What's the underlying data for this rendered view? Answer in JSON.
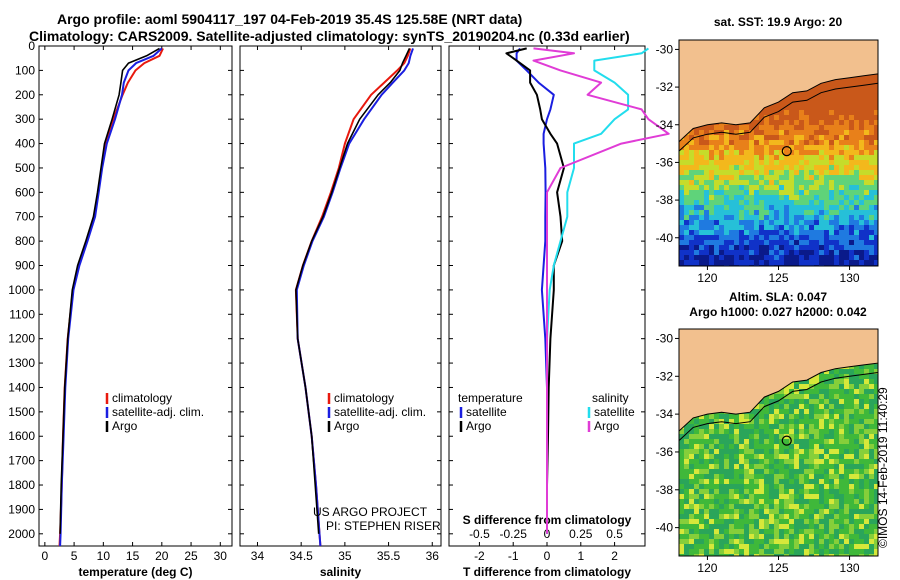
{
  "header": {
    "title_line1": "Argo profile: aoml 5904117_197 04-Feb-2019 35.4S 125.58E (NRT data)",
    "title_line2": "Climatology: CARS2009. Satellite-adjusted climatology: synTS_20190204.nc (0.33d earlier)"
  },
  "credit": {
    "project": "US ARGO PROJECT",
    "pi": "PI: STEPHEN RISER",
    "imos": "©IMOS 14-Feb-2019 11:40:29"
  },
  "colors": {
    "climatology": "#e8190e",
    "satellite": "#1a1ee0",
    "argo": "#000000",
    "sat_salinity": "#22dded",
    "argo_salinity": "#e03cd6",
    "land": "#f2c08e"
  },
  "chart_data": [
    {
      "type": "line",
      "panel": "temperature",
      "xlabel": "temperature (deg C)",
      "xlim": [
        -1,
        32
      ],
      "xticks": [
        0,
        5,
        10,
        15,
        20,
        25,
        30
      ],
      "ylim": [
        2050,
        0
      ],
      "yticks": [
        0,
        100,
        200,
        300,
        400,
        500,
        600,
        700,
        800,
        900,
        1000,
        1100,
        1200,
        1300,
        1400,
        1500,
        1600,
        1700,
        1800,
        1900,
        2000
      ],
      "y": [
        10,
        40,
        70,
        100,
        150,
        200,
        300,
        400,
        500,
        600,
        700,
        800,
        900,
        1000,
        1200,
        1400,
        1600,
        1800,
        2000,
        2050
      ],
      "series": [
        {
          "name": "climatology",
          "values": [
            20.2,
            19.6,
            17,
            15.5,
            14.2,
            13.3,
            11.7,
            10.3,
            9.7,
            9.1,
            8.4,
            7.1,
            5.7,
            4.8,
            3.9,
            3.4,
            3.1,
            2.9,
            2.6,
            2.5
          ]
        },
        {
          "name": "satellite-adj. clim.",
          "values": [
            20.0,
            18.6,
            15.6,
            14.3,
            13.5,
            13.2,
            12.0,
            10.6,
            9.8,
            9.2,
            8.6,
            7.3,
            5.9,
            4.9,
            4.0,
            3.5,
            3.2,
            2.9,
            2.7,
            2.6
          ]
        },
        {
          "name": "Argo",
          "values": [
            19.6,
            17.4,
            14.3,
            13.3,
            13.0,
            12.7,
            11.5,
            10.2,
            9.6,
            9.0,
            8.3,
            7.0,
            5.6,
            4.7,
            3.9,
            3.4,
            3.1,
            2.8,
            2.6
          ]
        }
      ],
      "legend": [
        "climatology",
        "satellite-adj. clim.",
        "Argo"
      ],
      "legend_position": "lower-right"
    },
    {
      "type": "line",
      "panel": "salinity",
      "xlabel": "salinity",
      "xlim": [
        33.8,
        36.1
      ],
      "xticks": [
        34,
        34.5,
        35,
        35.5,
        36
      ],
      "xtick_labels": [
        "34",
        "34.5",
        "35",
        "35.5",
        "36"
      ],
      "ylim": [
        2050,
        0
      ],
      "y": [
        10,
        40,
        70,
        100,
        150,
        200,
        300,
        400,
        500,
        600,
        700,
        800,
        900,
        1000,
        1200,
        1400,
        1600,
        1800,
        2000,
        2050
      ],
      "series": [
        {
          "name": "climatology",
          "values": [
            35.75,
            35.72,
            35.68,
            35.6,
            35.45,
            35.3,
            35.1,
            35.0,
            34.93,
            34.84,
            34.74,
            34.62,
            34.52,
            34.44,
            34.46,
            34.55,
            34.62,
            34.67,
            34.71,
            34.72
          ]
        },
        {
          "name": "satellite-adj. clim.",
          "values": [
            35.78,
            35.75,
            35.73,
            35.68,
            35.55,
            35.42,
            35.22,
            35.05,
            34.95,
            34.86,
            34.76,
            34.63,
            34.53,
            34.45,
            34.46,
            34.55,
            34.62,
            34.67,
            34.71,
            34.72
          ]
        },
        {
          "name": "Argo",
          "values": [
            35.74,
            35.7,
            35.66,
            35.63,
            35.52,
            35.38,
            35.17,
            35.03,
            34.94,
            34.85,
            34.75,
            34.62,
            34.52,
            34.44,
            34.46,
            34.55,
            34.62,
            34.66,
            34.7
          ]
        }
      ],
      "legend": [
        "climatology",
        "satellite-adj. clim.",
        "Argo"
      ],
      "legend_position": "lower-right"
    },
    {
      "type": "line",
      "panel": "difference",
      "xlabel": "T difference from climatology",
      "xlabel_top": "S difference from climatology",
      "xlim": [
        -2.9,
        2.9
      ],
      "xticks": [
        -2,
        -1,
        0,
        1,
        2
      ],
      "sticks": [
        "-0.5",
        "-0.25",
        "0",
        "0.25",
        "0.5"
      ],
      "ylim": [
        2050,
        0
      ],
      "y": [
        10,
        30,
        60,
        100,
        150,
        200,
        260,
        300,
        360,
        400,
        500,
        600,
        700,
        800,
        900,
        1000,
        1200,
        1400,
        1600,
        1800,
        2000
      ],
      "series": [
        {
          "name": "satellite",
          "group": "temperature",
          "values": [
            -0.8,
            -0.9,
            -0.9,
            -0.6,
            -0.25,
            0.2,
            0.1,
            0.0,
            -0.1,
            -0.1,
            -0.05,
            -0.04,
            -0.05,
            -0.05,
            -0.1,
            -0.15,
            -0.05,
            0.0,
            0.0,
            0.0,
            0.0
          ]
        },
        {
          "name": "Argo",
          "group": "temperature",
          "values": [
            -0.6,
            -1.2,
            -0.9,
            -0.5,
            -0.5,
            -0.3,
            -0.2,
            -0.15,
            0.1,
            0.3,
            0.5,
            0.3,
            0.4,
            0.45,
            0.2,
            0.2,
            0.1,
            0.05,
            0.03,
            0.0,
            0.0
          ]
        },
        {
          "name": "satellite",
          "group": "salinity",
          "values": [
            0.75,
            0.7,
            0.35,
            0.35,
            0.5,
            0.6,
            0.6,
            0.5,
            0.4,
            0.2,
            0.2,
            0.15,
            0.15,
            0.1,
            0.05,
            0.02,
            0.0,
            0.0,
            0.0,
            0.0,
            0.0
          ]
        },
        {
          "name": "Argo",
          "group": "salinity",
          "values": [
            -0.1,
            0.2,
            -0.1,
            0.1,
            0.4,
            0.3,
            0.7,
            0.75,
            0.9,
            0.55,
            0.1,
            0.0,
            0.0,
            0.0,
            0.0,
            0.0,
            0.0,
            0.0,
            0.0,
            0.0,
            0.0
          ]
        }
      ],
      "legend_left_title": "temperature",
      "legend_right_title": "salinity",
      "legend_left": [
        "satellite",
        "Argo"
      ],
      "legend_right": [
        "satellite",
        "Argo"
      ]
    },
    {
      "type": "heatmap",
      "panel": "sst-map",
      "title": "sat. SST: 19.9 Argo: 20",
      "xticks": [
        120,
        125,
        130
      ],
      "yticks": [
        -30,
        -32,
        -34,
        -36,
        -38,
        -40
      ],
      "xlim": [
        118,
        132
      ],
      "ylim": [
        -41.5,
        -29.5
      ],
      "argo_position": [
        125.58,
        -35.4
      ]
    },
    {
      "type": "heatmap",
      "panel": "sla-map",
      "title_line1": "Altim. SLA: 0.047",
      "title_line2": "Argo h1000: 0.027 h2000: 0.042",
      "xticks": [
        120,
        125,
        130
      ],
      "yticks": [
        -30,
        -32,
        -34,
        -36,
        -38,
        -40
      ],
      "xlim": [
        118,
        132
      ],
      "ylim": [
        -41.5,
        -29.5
      ],
      "argo_position": [
        125.58,
        -35.4
      ]
    }
  ]
}
